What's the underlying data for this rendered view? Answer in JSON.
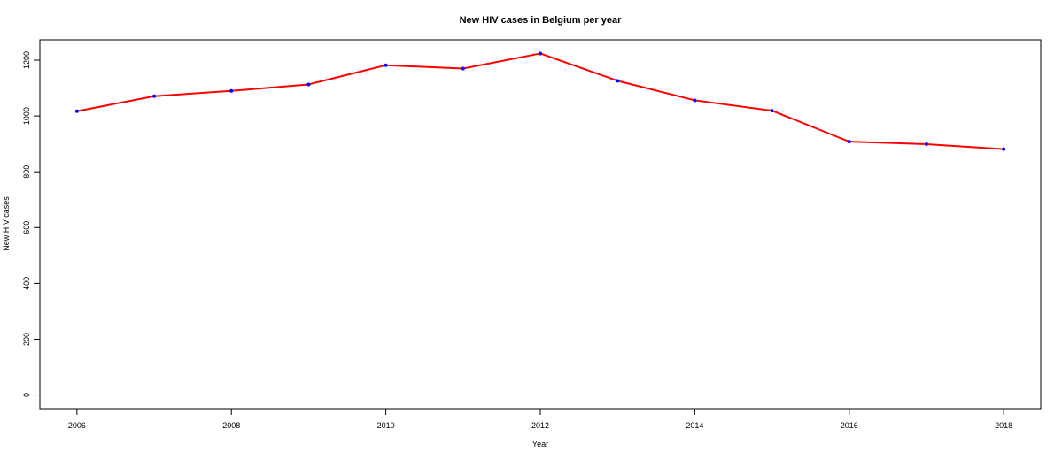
{
  "chart_data": {
    "type": "line",
    "title": "New HIV cases in Belgium per year",
    "xlabel": "Year",
    "ylabel": "New HIV cases",
    "x": [
      2006,
      2007,
      2008,
      2009,
      2010,
      2011,
      2012,
      2013,
      2014,
      2015,
      2016,
      2017,
      2018
    ],
    "series": [
      {
        "values": [
          1017,
          1071,
          1090,
          1113,
          1182,
          1170,
          1224,
          1126,
          1056,
          1019,
          908,
          899,
          881
        ]
      }
    ],
    "xlim": [
      2005.52,
      2018.48
    ],
    "ylim": [
      -48.96,
      1272.96
    ],
    "x_ticks": [
      "2006",
      "2008",
      "2010",
      "2012",
      "2014",
      "2016",
      "2018"
    ],
    "y_ticks": [
      "0",
      "200",
      "400",
      "600",
      "800",
      "1000",
      "1200"
    ],
    "grid": false,
    "line_color": "#ff0000",
    "point_color": "#0000ff"
  }
}
